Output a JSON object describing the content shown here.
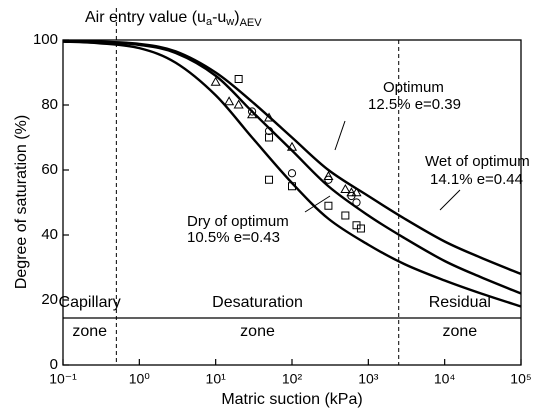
{
  "chart_data": {
    "type": "line",
    "x_label": "Matric suction (kPa)",
    "y_label": "Degree of saturation (%)",
    "xscale": "log",
    "xlim": [
      0.1,
      100000
    ],
    "ylim": [
      0,
      100
    ],
    "xticks": [
      {
        "value": 0.1,
        "label": "10⁻¹"
      },
      {
        "value": 1,
        "label": "10⁰"
      },
      {
        "value": 10,
        "label": "10¹"
      },
      {
        "value": 100,
        "label": "10²"
      },
      {
        "value": 1000,
        "label": "10³"
      },
      {
        "value": 10000,
        "label": "10⁴"
      },
      {
        "value": 100000,
        "label": "10⁵"
      }
    ],
    "yticks": [
      0,
      20,
      40,
      60,
      80,
      100
    ],
    "aev_annotation": [
      "Air entry value (u",
      "a",
      "-u",
      "w",
      ")",
      "AEV"
    ],
    "zone_boundaries": [
      0.5,
      2500
    ],
    "zones": [
      {
        "name": "Capillary",
        "word": "zone"
      },
      {
        "name": "Desaturation",
        "word": "zone"
      },
      {
        "name": "Residual",
        "word": "zone"
      }
    ],
    "x": [
      0.1,
      0.3,
      1,
      3,
      10,
      30,
      100,
      300,
      1000,
      3000,
      10000,
      30000,
      100000
    ],
    "series": [
      {
        "name": "Optimum",
        "detail": "12.5% e=0.39",
        "color": "#000000",
        "values": [
          99.8,
          99.4,
          98.5,
          96,
          89,
          78,
          66,
          55,
          46,
          39,
          32,
          27,
          22
        ]
      },
      {
        "name": "Wet of optimum",
        "detail": "14.1% e=0.44",
        "color": "#000000",
        "values": [
          99.8,
          99.5,
          98.8,
          96.5,
          90,
          81,
          70,
          60,
          52,
          45,
          38,
          33,
          28
        ]
      },
      {
        "name": "Dry of optimum",
        "detail": "10.5% e=0.43",
        "color": "#000000",
        "values": [
          99.5,
          99,
          97.5,
          93,
          83,
          70,
          56,
          45,
          37,
          31,
          26,
          22,
          18
        ]
      }
    ],
    "points": [
      {
        "marker": "triangle",
        "x": [
          10,
          15,
          20,
          30,
          50,
          100,
          300,
          500,
          600,
          700
        ],
        "values": [
          87,
          81,
          80,
          77,
          76,
          67,
          58,
          54,
          53,
          53
        ]
      },
      {
        "marker": "circle",
        "x": [
          30,
          50,
          100,
          300,
          600,
          700
        ],
        "values": [
          78,
          72,
          59,
          57,
          52,
          50
        ]
      },
      {
        "marker": "square",
        "x": [
          20,
          50,
          50,
          100,
          300,
          500,
          700,
          800
        ],
        "values": [
          88,
          70,
          57,
          55,
          49,
          46,
          43,
          42
        ]
      }
    ]
  }
}
